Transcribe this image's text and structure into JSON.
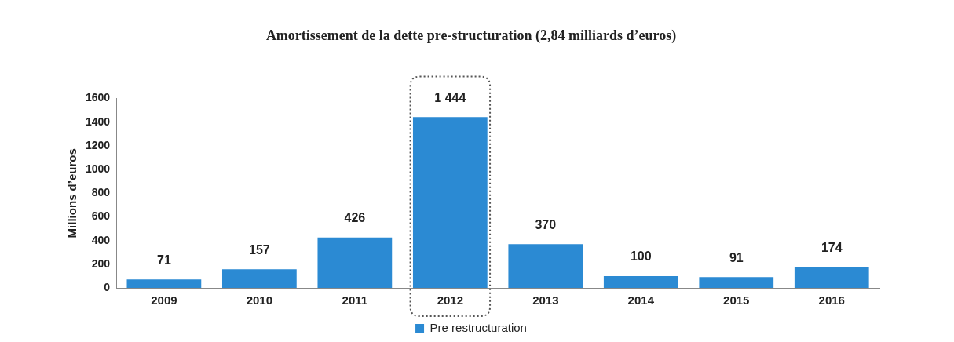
{
  "chart_data": {
    "type": "bar",
    "title": "Amortissement de la dette pre-structuration (2,84 milliards d’euros)",
    "ylabel": "Millions d’euros",
    "categories": [
      "2009",
      "2010",
      "2011",
      "2012",
      "2013",
      "2014",
      "2015",
      "2016"
    ],
    "series": [
      {
        "name": "Pre restructuration",
        "color": "#2b8ad3",
        "values": [
          71,
          157,
          426,
          1444,
          370,
          100,
          91,
          174
        ],
        "value_labels": [
          "71",
          "157",
          "426",
          "1 444",
          "370",
          "100",
          "91",
          "174"
        ]
      }
    ],
    "ylim": [
      0,
      1600
    ],
    "yticks": [
      0,
      200,
      400,
      600,
      800,
      1000,
      1200,
      1400,
      1600
    ],
    "grid": false,
    "legend": "bottom"
  }
}
